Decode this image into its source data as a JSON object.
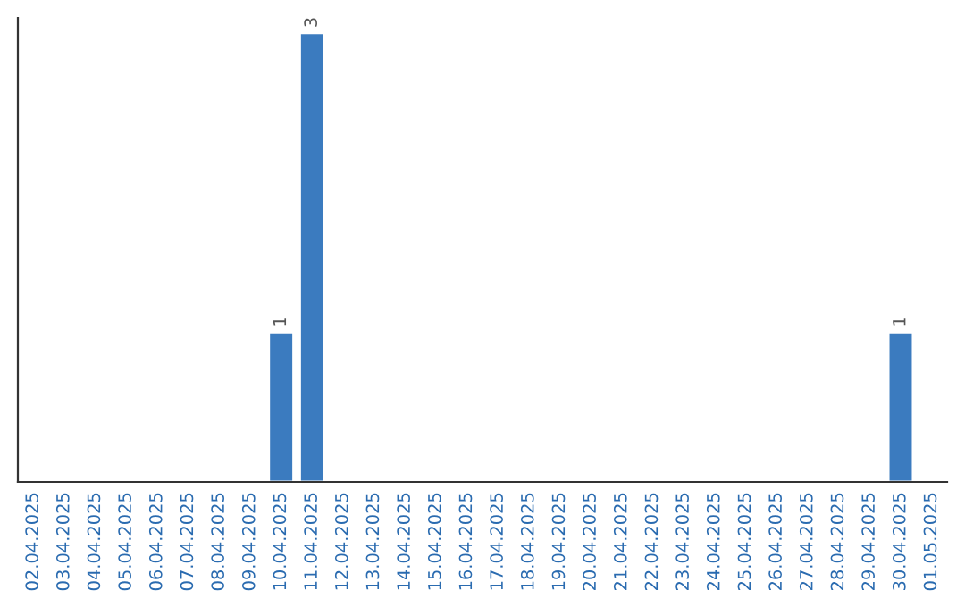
{
  "chart_data": {
    "type": "bar",
    "categories": [
      "02.04.2025",
      "03.04.2025",
      "04.04.2025",
      "05.04.2025",
      "06.04.2025",
      "07.04.2025",
      "08.04.2025",
      "09.04.2025",
      "10.04.2025",
      "11.04.2025",
      "12.04.2025",
      "13.04.2025",
      "14.04.2025",
      "15.04.2025",
      "16.04.2025",
      "17.04.2025",
      "18.04.2025",
      "19.04.2025",
      "20.04.2025",
      "21.04.2025",
      "22.04.2025",
      "23.04.2025",
      "24.04.2025",
      "25.04.2025",
      "26.04.2025",
      "27.04.2025",
      "28.04.2025",
      "29.04.2025",
      "30.04.2025",
      "01.05.2025"
    ],
    "values": [
      null,
      null,
      null,
      null,
      null,
      null,
      null,
      null,
      1,
      3,
      null,
      null,
      null,
      null,
      null,
      null,
      null,
      null,
      null,
      null,
      null,
      null,
      null,
      null,
      null,
      null,
      null,
      null,
      1,
      null
    ],
    "value_labels": [
      null,
      null,
      null,
      null,
      null,
      null,
      null,
      null,
      "1",
      "3",
      null,
      null,
      null,
      null,
      null,
      null,
      null,
      null,
      null,
      null,
      null,
      null,
      null,
      null,
      null,
      null,
      null,
      null,
      "1",
      null
    ],
    "color": "#3b7bbf",
    "ylim": [
      0,
      3.1
    ],
    "tick_labels": "x",
    "grid": false,
    "legend": false
  }
}
